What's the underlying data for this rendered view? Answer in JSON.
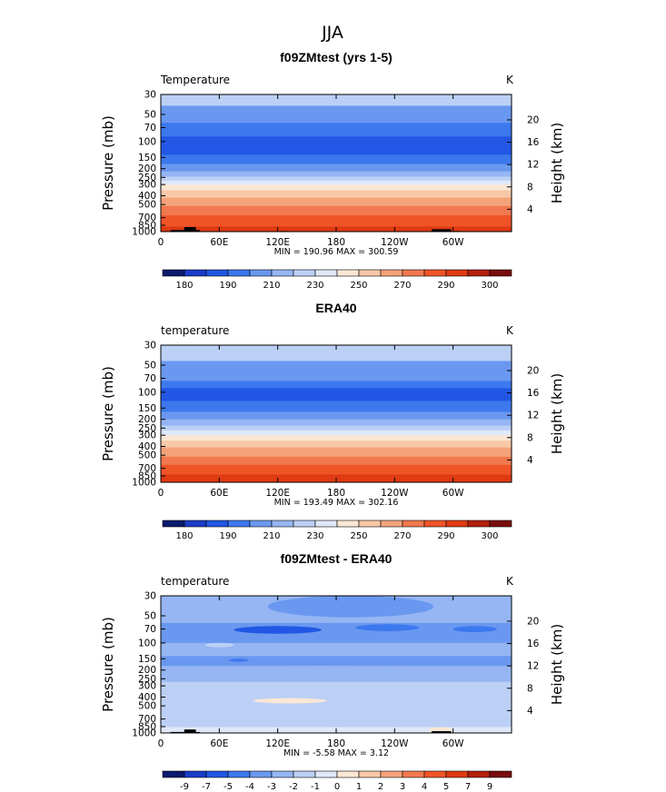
{
  "figure": {
    "title": "JJA"
  },
  "palettes": {
    "abs": [
      "#0a1a6e",
      "#1a3cc8",
      "#2157e4",
      "#3c78ee",
      "#6a98f0",
      "#95b6f3",
      "#bcd0f6",
      "#dfe8f8",
      "#fbe7d6",
      "#f8c8a7",
      "#f4a27a",
      "#f2784f",
      "#ef5427",
      "#df3a12",
      "#b4200c",
      "#7a0c0c"
    ],
    "diff": [
      "#0a1a6e",
      "#1a3cc8",
      "#2157e4",
      "#3c78ee",
      "#6a98f0",
      "#95b6f3",
      "#bcd0f6",
      "#dfe8f8",
      "#fbe7d6",
      "#f8c8a7",
      "#f4a27a",
      "#f2784f",
      "#ef5427",
      "#df3a12",
      "#b4200c",
      "#7a0c0c"
    ]
  },
  "chart_data": [
    {
      "type": "heatmap",
      "title": "f09ZMtest (yrs 1-5)",
      "left_label": "Temperature",
      "right_label": "K",
      "ylabel": "Pressure (mb)",
      "y2label": "Height (km)",
      "yscale": "log",
      "ylim": [
        1000,
        30
      ],
      "yticks": [
        30,
        50,
        70,
        100,
        150,
        200,
        250,
        300,
        400,
        500,
        700,
        850,
        1000
      ],
      "y2ticks": [
        20,
        16,
        12,
        8,
        4
      ],
      "xlim": [
        0,
        360
      ],
      "xticks": [
        {
          "v": 0,
          "l": "0"
        },
        {
          "v": 60,
          "l": "60E"
        },
        {
          "v": 120,
          "l": "120E"
        },
        {
          "v": 180,
          "l": "180"
        },
        {
          "v": 240,
          "l": "120W"
        },
        {
          "v": 300,
          "l": "60W"
        }
      ],
      "stats": "MIN = 190.96   MAX = 300.59",
      "colorbar_palette": "abs",
      "colorbar_labels": [
        "180",
        "190",
        "210",
        "230",
        "250",
        "270",
        "290",
        "300"
      ],
      "bands": [
        {
          "p": [
            30,
            40
          ],
          "c": 6
        },
        {
          "p": [
            40,
            62
          ],
          "c": 4
        },
        {
          "p": [
            62,
            88
          ],
          "c": 3
        },
        {
          "p": [
            88,
            140
          ],
          "c": 2
        },
        {
          "p": [
            140,
            178
          ],
          "c": 3
        },
        {
          "p": [
            178,
            215
          ],
          "c": 4
        },
        {
          "p": [
            215,
            245
          ],
          "c": 5
        },
        {
          "p": [
            245,
            272
          ],
          "c": 6
        },
        {
          "p": [
            272,
            300
          ],
          "c": 7
        },
        {
          "p": [
            300,
            348
          ],
          "c": 8
        },
        {
          "p": [
            348,
            420
          ],
          "c": 9
        },
        {
          "p": [
            420,
            520
          ],
          "c": 10
        },
        {
          "p": [
            520,
            660
          ],
          "c": 11
        },
        {
          "p": [
            660,
            880
          ],
          "c": 12
        },
        {
          "p": [
            880,
            1000
          ],
          "c": 13
        }
      ],
      "blobs": [],
      "topo": [
        [
          10,
          24,
          960
        ],
        [
          24,
          36,
          890
        ],
        [
          36,
          40,
          960
        ],
        [
          60,
          66,
          990
        ],
        [
          123,
          130,
          985
        ],
        [
          278,
          298,
          940
        ],
        [
          300,
          308,
          985
        ]
      ]
    },
    {
      "type": "heatmap",
      "title": "ERA40",
      "left_label": "temperature",
      "right_label": "K",
      "ylabel": "Pressure (mb)",
      "y2label": "Height (km)",
      "yscale": "log",
      "ylim": [
        1000,
        30
      ],
      "yticks": [
        30,
        50,
        70,
        100,
        150,
        200,
        250,
        300,
        400,
        500,
        700,
        850,
        1000
      ],
      "y2ticks": [
        20,
        16,
        12,
        8,
        4
      ],
      "xlim": [
        0,
        360
      ],
      "xticks": [
        {
          "v": 0,
          "l": "0"
        },
        {
          "v": 60,
          "l": "60E"
        },
        {
          "v": 120,
          "l": "120E"
        },
        {
          "v": 180,
          "l": "180"
        },
        {
          "v": 240,
          "l": "120W"
        },
        {
          "v": 300,
          "l": "60W"
        }
      ],
      "stats": "MIN = 193.49   MAX = 302.16",
      "colorbar_palette": "abs",
      "colorbar_labels": [
        "180",
        "190",
        "210",
        "230",
        "250",
        "270",
        "290",
        "300"
      ],
      "bands": [
        {
          "p": [
            30,
            45
          ],
          "c": 6
        },
        {
          "p": [
            45,
            75
          ],
          "c": 4
        },
        {
          "p": [
            75,
            90
          ],
          "c": 3
        },
        {
          "p": [
            90,
            125
          ],
          "c": 2
        },
        {
          "p": [
            125,
            165
          ],
          "c": 3
        },
        {
          "p": [
            165,
            200
          ],
          "c": 4
        },
        {
          "p": [
            200,
            235
          ],
          "c": 5
        },
        {
          "p": [
            235,
            265
          ],
          "c": 6
        },
        {
          "p": [
            265,
            300
          ],
          "c": 7
        },
        {
          "p": [
            300,
            345
          ],
          "c": 8
        },
        {
          "p": [
            345,
            410
          ],
          "c": 9
        },
        {
          "p": [
            410,
            520
          ],
          "c": 10
        },
        {
          "p": [
            520,
            640
          ],
          "c": 11
        },
        {
          "p": [
            640,
            820
          ],
          "c": 12
        },
        {
          "p": [
            820,
            1000
          ],
          "c": 13
        }
      ],
      "blobs": [],
      "topo": []
    },
    {
      "type": "heatmap",
      "title": "f09ZMtest - ERA40",
      "left_label": "temperature",
      "right_label": "K",
      "ylabel": "Pressure (mb)",
      "y2label": "Height (km)",
      "yscale": "log",
      "ylim": [
        1000,
        30
      ],
      "yticks": [
        30,
        50,
        70,
        100,
        150,
        200,
        250,
        300,
        400,
        500,
        700,
        850,
        1000
      ],
      "y2ticks": [
        20,
        16,
        12,
        8,
        4
      ],
      "xlim": [
        0,
        360
      ],
      "xticks": [
        {
          "v": 0,
          "l": "0"
        },
        {
          "v": 60,
          "l": "60E"
        },
        {
          "v": 120,
          "l": "120E"
        },
        {
          "v": 180,
          "l": "180"
        },
        {
          "v": 240,
          "l": "120W"
        },
        {
          "v": 300,
          "l": "60W"
        }
      ],
      "stats": "MIN =   -5.58   MAX =    3.12",
      "colorbar_palette": "diff",
      "colorbar_labels": [
        "-9",
        "-7",
        "-5",
        "-4",
        "-3",
        "-2",
        "-1",
        "0",
        "1",
        "2",
        "3",
        "4",
        "5",
        "7",
        "9"
      ],
      "bands": [
        {
          "p": [
            30,
            60
          ],
          "c": 5
        },
        {
          "p": [
            60,
            100
          ],
          "c": 4
        },
        {
          "p": [
            100,
            140
          ],
          "c": 5
        },
        {
          "p": [
            140,
            180
          ],
          "c": 4
        },
        {
          "p": [
            180,
            270
          ],
          "c": 5
        },
        {
          "p": [
            270,
            860
          ],
          "c": 6
        },
        {
          "p": [
            860,
            1000
          ],
          "c": 7
        }
      ],
      "blobs": [
        {
          "x": [
            110,
            280
          ],
          "p": [
            30,
            52
          ],
          "c": 4
        },
        {
          "x": [
            75,
            165
          ],
          "p": [
            65,
            79
          ],
          "c": 2
        },
        {
          "x": [
            300,
            345
          ],
          "p": [
            65,
            76
          ],
          "c": 3
        },
        {
          "x": [
            200,
            265
          ],
          "p": [
            62,
            74
          ],
          "c": 3
        },
        {
          "x": [
            45,
            75
          ],
          "p": [
            100,
            112
          ],
          "c": 6
        },
        {
          "x": [
            70,
            90
          ],
          "p": [
            150,
            162
          ],
          "c": 3
        },
        {
          "x": [
            25,
            300
          ],
          "p": [
            180,
            205
          ],
          "c": 5
        },
        {
          "x": [
            95,
            170
          ],
          "p": [
            410,
            470
          ],
          "c": 8
        },
        {
          "x": [
            275,
            300
          ],
          "p": [
            860,
            990
          ],
          "c": 8
        }
      ],
      "topo": [
        [
          10,
          24,
          975
        ],
        [
          24,
          36,
          915
        ],
        [
          36,
          40,
          975
        ],
        [
          278,
          298,
          955
        ]
      ]
    }
  ]
}
